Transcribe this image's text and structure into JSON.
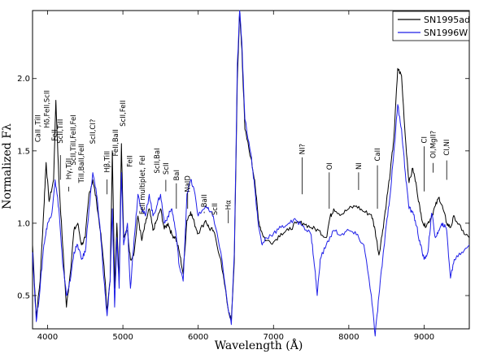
{
  "chart_data": {
    "type": "line",
    "xlabel": "Wavelength (Å)",
    "ylabel": "Normalized Fλ",
    "xlim": [
      3800,
      9600
    ],
    "ylim": [
      0.27,
      2.47
    ],
    "grid": false,
    "legend": "top-right",
    "x_ticks": [
      {
        "value": 4000,
        "label": "4000"
      },
      {
        "value": 5000,
        "label": "5000"
      },
      {
        "value": 6000,
        "label": "6000"
      },
      {
        "value": 7000,
        "label": "7000"
      },
      {
        "value": 8000,
        "label": "8000"
      },
      {
        "value": 9000,
        "label": "9000"
      }
    ],
    "y_ticks": [
      {
        "value": 0.5,
        "label": "0.5"
      },
      {
        "value": 1.0,
        "label": "1.0"
      },
      {
        "value": 1.5,
        "label": "1.5"
      },
      {
        "value": 2.0,
        "label": "2.0"
      }
    ],
    "series": [
      {
        "name": "SN1995ad",
        "color": "#000000",
        "points": [
          [
            3800,
            0.85
          ],
          [
            3850,
            0.35
          ],
          [
            3900,
            0.6
          ],
          [
            3950,
            1.1
          ],
          [
            3980,
            1.42
          ],
          [
            4020,
            1.15
          ],
          [
            4080,
            1.3
          ],
          [
            4110,
            1.85
          ],
          [
            4150,
            1.3
          ],
          [
            4200,
            0.85
          ],
          [
            4250,
            0.42
          ],
          [
            4300,
            0.65
          ],
          [
            4350,
            0.95
          ],
          [
            4400,
            1.0
          ],
          [
            4450,
            0.85
          ],
          [
            4500,
            0.9
          ],
          [
            4550,
            1.2
          ],
          [
            4600,
            1.3
          ],
          [
            4650,
            1.15
          ],
          [
            4700,
            0.95
          ],
          [
            4750,
            0.7
          ],
          [
            4790,
            0.4
          ],
          [
            4830,
            0.6
          ],
          [
            4860,
            1.5
          ],
          [
            4890,
            0.55
          ],
          [
            4920,
            1.0
          ],
          [
            4950,
            0.6
          ],
          [
            4980,
            1.55
          ],
          [
            5010,
            0.9
          ],
          [
            5060,
            0.95
          ],
          [
            5100,
            0.75
          ],
          [
            5150,
            0.8
          ],
          [
            5200,
            1.05
          ],
          [
            5250,
            0.88
          ],
          [
            5300,
            1.0
          ],
          [
            5350,
            1.1
          ],
          [
            5400,
            0.95
          ],
          [
            5450,
            1.02
          ],
          [
            5500,
            1.1
          ],
          [
            5550,
            0.96
          ],
          [
            5600,
            1.0
          ],
          [
            5650,
            0.92
          ],
          [
            5700,
            0.9
          ],
          [
            5750,
            0.8
          ],
          [
            5800,
            0.65
          ],
          [
            5850,
            1.02
          ],
          [
            5900,
            1.08
          ],
          [
            5950,
            1.0
          ],
          [
            6000,
            0.93
          ],
          [
            6100,
            1.02
          ],
          [
            6150,
            0.96
          ],
          [
            6200,
            0.95
          ],
          [
            6300,
            0.75
          ],
          [
            6400,
            0.4
          ],
          [
            6440,
            0.32
          ],
          [
            6480,
            0.75
          ],
          [
            6520,
            2.0
          ],
          [
            6550,
            2.45
          ],
          [
            6580,
            2.2
          ],
          [
            6620,
            1.65
          ],
          [
            6700,
            1.45
          ],
          [
            6750,
            1.3
          ],
          [
            6800,
            1.02
          ],
          [
            6850,
            0.93
          ],
          [
            6900,
            0.88
          ],
          [
            7000,
            0.87
          ],
          [
            7100,
            0.93
          ],
          [
            7200,
            0.95
          ],
          [
            7300,
            1.0
          ],
          [
            7400,
            1.0
          ],
          [
            7500,
            0.97
          ],
          [
            7600,
            0.95
          ],
          [
            7700,
            0.9
          ],
          [
            7750,
            1.04
          ],
          [
            7800,
            1.1
          ],
          [
            7900,
            1.06
          ],
          [
            8000,
            1.1
          ],
          [
            8100,
            1.12
          ],
          [
            8200,
            1.08
          ],
          [
            8300,
            1.06
          ],
          [
            8350,
            0.95
          ],
          [
            8400,
            0.78
          ],
          [
            8450,
            0.95
          ],
          [
            8500,
            1.15
          ],
          [
            8550,
            1.35
          ],
          [
            8600,
            1.6
          ],
          [
            8650,
            2.07
          ],
          [
            8700,
            2.02
          ],
          [
            8750,
            1.6
          ],
          [
            8800,
            1.28
          ],
          [
            8850,
            1.38
          ],
          [
            8900,
            1.25
          ],
          [
            8950,
            1.08
          ],
          [
            9000,
            0.98
          ],
          [
            9050,
            1.0
          ],
          [
            9100,
            1.05
          ],
          [
            9150,
            1.12
          ],
          [
            9200,
            1.18
          ],
          [
            9250,
            1.1
          ],
          [
            9300,
            1.0
          ],
          [
            9350,
            0.97
          ],
          [
            9400,
            1.05
          ],
          [
            9500,
            0.95
          ],
          [
            9600,
            0.9
          ]
        ]
      },
      {
        "name": "SN1996W",
        "color": "#1f1fe8",
        "points": [
          [
            3800,
            0.8
          ],
          [
            3850,
            0.32
          ],
          [
            3900,
            0.55
          ],
          [
            3950,
            0.85
          ],
          [
            4000,
            1.0
          ],
          [
            4050,
            1.05
          ],
          [
            4100,
            1.3
          ],
          [
            4150,
            1.1
          ],
          [
            4200,
            0.72
          ],
          [
            4250,
            0.5
          ],
          [
            4300,
            0.6
          ],
          [
            4350,
            0.8
          ],
          [
            4400,
            0.85
          ],
          [
            4450,
            0.75
          ],
          [
            4500,
            0.8
          ],
          [
            4550,
            1.1
          ],
          [
            4600,
            1.35
          ],
          [
            4650,
            1.2
          ],
          [
            4700,
            0.95
          ],
          [
            4750,
            0.6
          ],
          [
            4790,
            0.36
          ],
          [
            4830,
            0.6
          ],
          [
            4860,
            1.1
          ],
          [
            4890,
            0.42
          ],
          [
            4920,
            0.9
          ],
          [
            4950,
            0.55
          ],
          [
            4980,
            1.35
          ],
          [
            5010,
            0.85
          ],
          [
            5060,
            1.0
          ],
          [
            5100,
            0.55
          ],
          [
            5150,
            0.9
          ],
          [
            5200,
            1.2
          ],
          [
            5250,
            1.1
          ],
          [
            5300,
            1.05
          ],
          [
            5350,
            1.2
          ],
          [
            5400,
            1.05
          ],
          [
            5450,
            1.12
          ],
          [
            5500,
            1.2
          ],
          [
            5550,
            1.0
          ],
          [
            5600,
            1.05
          ],
          [
            5650,
            1.1
          ],
          [
            5700,
            0.95
          ],
          [
            5750,
            0.7
          ],
          [
            5800,
            0.6
          ],
          [
            5850,
            1.2
          ],
          [
            5900,
            1.3
          ],
          [
            5950,
            1.22
          ],
          [
            6000,
            1.05
          ],
          [
            6100,
            1.12
          ],
          [
            6150,
            1.08
          ],
          [
            6200,
            1.05
          ],
          [
            6300,
            0.8
          ],
          [
            6400,
            0.4
          ],
          [
            6440,
            0.3
          ],
          [
            6480,
            0.8
          ],
          [
            6520,
            2.1
          ],
          [
            6550,
            2.47
          ],
          [
            6580,
            2.25
          ],
          [
            6620,
            1.72
          ],
          [
            6700,
            1.48
          ],
          [
            6750,
            1.25
          ],
          [
            6800,
            0.98
          ],
          [
            6850,
            0.85
          ],
          [
            6900,
            0.9
          ],
          [
            7000,
            0.93
          ],
          [
            7100,
            0.97
          ],
          [
            7200,
            1.0
          ],
          [
            7300,
            1.02
          ],
          [
            7400,
            0.98
          ],
          [
            7500,
            0.92
          ],
          [
            7550,
            0.68
          ],
          [
            7580,
            0.5
          ],
          [
            7620,
            0.75
          ],
          [
            7700,
            0.85
          ],
          [
            7800,
            0.95
          ],
          [
            7900,
            0.92
          ],
          [
            8000,
            0.95
          ],
          [
            8100,
            0.92
          ],
          [
            8200,
            0.85
          ],
          [
            8300,
            0.5
          ],
          [
            8350,
            0.22
          ],
          [
            8400,
            0.5
          ],
          [
            8450,
            0.75
          ],
          [
            8500,
            1.0
          ],
          [
            8550,
            1.2
          ],
          [
            8600,
            1.5
          ],
          [
            8650,
            1.82
          ],
          [
            8700,
            1.65
          ],
          [
            8750,
            1.35
          ],
          [
            8800,
            1.1
          ],
          [
            8850,
            1.08
          ],
          [
            8900,
            0.98
          ],
          [
            8950,
            0.85
          ],
          [
            9000,
            0.75
          ],
          [
            9050,
            0.8
          ],
          [
            9100,
            1.07
          ],
          [
            9150,
            0.9
          ],
          [
            9200,
            0.95
          ],
          [
            9250,
            1.0
          ],
          [
            9300,
            0.95
          ],
          [
            9350,
            0.62
          ],
          [
            9400,
            0.75
          ],
          [
            9500,
            0.8
          ],
          [
            9600,
            0.85
          ]
        ]
      }
    ],
    "annotations": [
      {
        "text": "CaII ,TiII",
        "x": 3870,
        "y_top": 1.75,
        "y_line_end": 1.62
      },
      {
        "text": "Hδ,FeII,ScII",
        "x": 3990,
        "y_top": 1.92,
        "y_line_end": 1.78
      },
      {
        "text": "FeII",
        "x": 4090,
        "y_top": 1.65,
        "y_line_end": 1.55
      },
      {
        "text": "ScII,TiII",
        "x": 4170,
        "y_top": 1.72,
        "y_line_end": 1.3
      },
      {
        "text": "Hγ,TiII",
        "x": 4280,
        "y_top": 1.45,
        "y_line_end": 1.22
      },
      {
        "text": "ScII,TiII,FeII,FeI",
        "x": 4340,
        "y_top": 1.75,
        "y_line_end": 1.33
      },
      {
        "text": "TiII,BaII,FeII",
        "x": 4450,
        "y_top": 1.55,
        "y_line_end": 1.3
      },
      {
        "text": "ScII,CI?",
        "x": 4600,
        "y_top": 1.72,
        "y_line_end": 1.58
      },
      {
        "text": "Hβ,TiII",
        "x": 4790,
        "y_top": 1.5,
        "y_line_end": 1.2
      },
      {
        "text": "FeII,BaII",
        "x": 4900,
        "y_top": 1.65,
        "y_line_end": 1.55
      },
      {
        "text": "ScII,FeII",
        "x": 5000,
        "y_top": 1.85,
        "y_line_end": 1.75
      },
      {
        "text": "FeII",
        "x": 5090,
        "y_top": 1.47,
        "y_line_end": 1.35
      },
      {
        "text": "FeII multiplet, FeI",
        "x": 5260,
        "y_top": 1.47,
        "y_line_end": 1.27
      },
      {
        "text": "ScII,BaI",
        "x": 5450,
        "y_top": 1.52,
        "y_line_end": 1.3
      },
      {
        "text": "ScII",
        "x": 5570,
        "y_top": 1.42,
        "y_line_end": 1.22
      },
      {
        "text": "BaI",
        "x": 5710,
        "y_top": 1.37,
        "y_line_end": 1.1
      },
      {
        "text": "NaID",
        "x": 5860,
        "y_top": 1.33,
        "y_line_end": 1.1
      },
      {
        "text": "BaII",
        "x": 6080,
        "y_top": 1.2,
        "y_line_end": 1.07
      },
      {
        "text": "ScII",
        "x": 6220,
        "y_top": 1.14,
        "y_line_end": 1.05
      },
      {
        "text": "Hα",
        "x": 6400,
        "y_top": 1.16,
        "y_line_end": 1.0
      },
      {
        "text": "NI?",
        "x": 7380,
        "y_top": 1.55,
        "y_line_end": 1.2
      },
      {
        "text": "OI",
        "x": 7740,
        "y_top": 1.42,
        "y_line_end": 1.1
      },
      {
        "text": "NI",
        "x": 8130,
        "y_top": 1.42,
        "y_line_end": 1.23
      },
      {
        "text": "CaII",
        "x": 8380,
        "y_top": 1.52,
        "y_line_end": 1.1
      },
      {
        "text": "CI",
        "x": 9000,
        "y_top": 1.6,
        "y_line_end": 1.22
      },
      {
        "text": "OI,MgII?",
        "x": 9120,
        "y_top": 1.64,
        "y_line_end": 1.35
      },
      {
        "text": "CI,NI",
        "x": 9300,
        "y_top": 1.58,
        "y_line_end": 1.3
      }
    ]
  }
}
